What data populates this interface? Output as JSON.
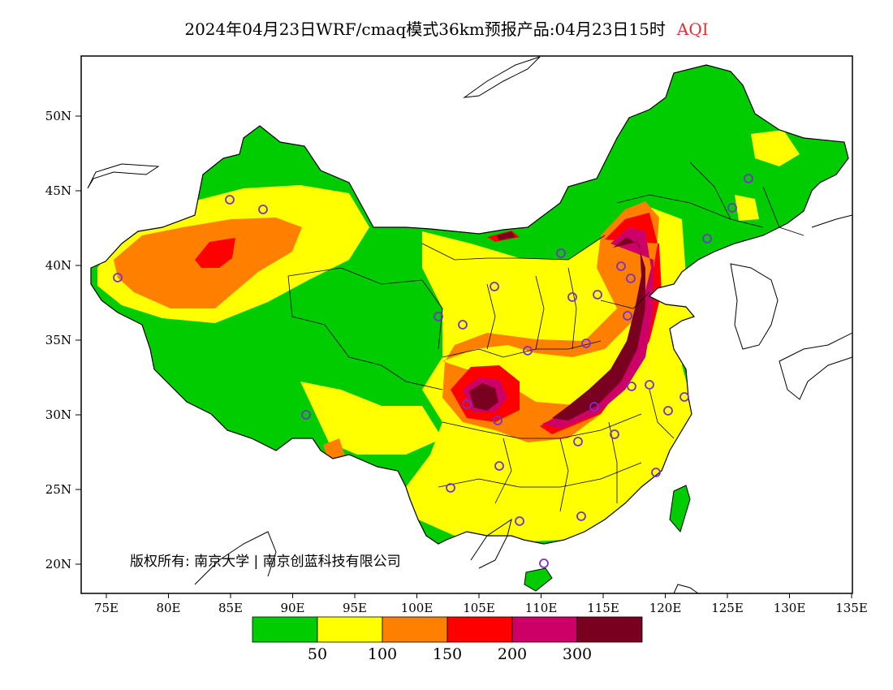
{
  "title": {
    "main": "2024年04月23日WRF/cmaq模式36km预报产品:04月23日15时",
    "variable": "AQI",
    "variable_color": "#e03030"
  },
  "map": {
    "x_ticks": [
      "75E",
      "80E",
      "85E",
      "90E",
      "95E",
      "100E",
      "105E",
      "110E",
      "115E",
      "120E",
      "125E",
      "130E",
      "135E"
    ],
    "y_ticks": [
      "50N",
      "45N",
      "40N",
      "35N",
      "30N",
      "25N",
      "20N"
    ],
    "copyright": "版权所有: 南京大学 | 南京创蓝科技有限公司"
  },
  "colorbar": {
    "colors": [
      "#00cc00",
      "#ffff00",
      "#ff8000",
      "#ff0000",
      "#cc0066",
      "#7a0020"
    ],
    "labels": [
      "50",
      "100",
      "150",
      "200",
      "300"
    ]
  },
  "colors": {
    "ocean": "#ffffff",
    "frame": "#000000",
    "station_marker": "#7b2fd0"
  }
}
